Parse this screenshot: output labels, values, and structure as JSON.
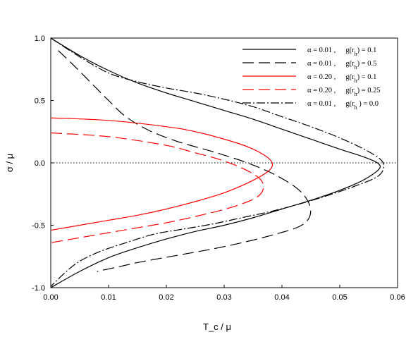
{
  "chart_data": {
    "type": "line",
    "xlabel": "T_c / μ",
    "ylabel": "σ / μ",
    "xlim": [
      0.0,
      0.06
    ],
    "ylim": [
      -1.0,
      1.0
    ],
    "x_ticks": [
      "0.00",
      "0.01",
      "0.02",
      "0.03",
      "0.04",
      "0.05",
      "0.06"
    ],
    "y_ticks": [
      "1.0",
      "0.5",
      "0.0",
      "-0.5",
      "-1.0"
    ],
    "grid": false,
    "legend_position": "top-right",
    "reference_line": {
      "y": 0.0,
      "style": "dotted"
    },
    "series": [
      {
        "name": "α = 0.01 ,   g(r_h) = 0.1",
        "legend": {
          "alpha": "α = 0.01 ,",
          "g": "g(r",
          "sub": "h",
          "eq": ") = 0.1"
        },
        "color": "#000000",
        "dash": "solid",
        "points": [
          [
            0.0,
            1.0
          ],
          [
            0.005,
            0.86
          ],
          [
            0.01,
            0.74
          ],
          [
            0.015,
            0.64
          ],
          [
            0.02,
            0.56
          ],
          [
            0.025,
            0.49
          ],
          [
            0.03,
            0.42
          ],
          [
            0.035,
            0.35
          ],
          [
            0.04,
            0.27
          ],
          [
            0.045,
            0.19
          ],
          [
            0.05,
            0.11
          ],
          [
            0.054,
            0.05
          ],
          [
            0.0565,
            0.0
          ],
          [
            0.0568,
            -0.05
          ],
          [
            0.054,
            -0.14
          ],
          [
            0.05,
            -0.22
          ],
          [
            0.045,
            -0.3
          ],
          [
            0.04,
            -0.37
          ],
          [
            0.035,
            -0.44
          ],
          [
            0.03,
            -0.5
          ],
          [
            0.025,
            -0.55
          ],
          [
            0.02,
            -0.61
          ],
          [
            0.015,
            -0.68
          ],
          [
            0.01,
            -0.76
          ],
          [
            0.005,
            -0.87
          ],
          [
            0.0,
            -1.0
          ]
        ]
      },
      {
        "name": "α = 0.01 ,   g(r_h) = 0.5",
        "legend": {
          "alpha": "α = 0.01 ,",
          "g": "g(r",
          "sub": "h",
          "eq": ") = 0.5"
        },
        "color": "#000000",
        "dash": "longdash",
        "points": [
          [
            0.0013,
            0.9
          ],
          [
            0.004,
            0.78
          ],
          [
            0.007,
            0.64
          ],
          [
            0.01,
            0.5
          ],
          [
            0.013,
            0.37
          ],
          [
            0.017,
            0.26
          ],
          [
            0.022,
            0.17
          ],
          [
            0.028,
            0.09
          ],
          [
            0.034,
            0.0
          ],
          [
            0.039,
            -0.1
          ],
          [
            0.043,
            -0.22
          ],
          [
            0.0448,
            -0.34
          ],
          [
            0.0447,
            -0.44
          ],
          [
            0.043,
            -0.51
          ],
          [
            0.039,
            -0.57
          ],
          [
            0.034,
            -0.63
          ],
          [
            0.028,
            -0.69
          ],
          [
            0.022,
            -0.74
          ],
          [
            0.016,
            -0.79
          ],
          [
            0.012,
            -0.83
          ],
          [
            0.008,
            -0.87
          ]
        ]
      },
      {
        "name": "α = 0.20 ,   g(r_h) = 0.1",
        "legend": {
          "alpha": "α = 0.20 ,",
          "g": "g(r",
          "sub": "h",
          "eq": ") = 0.1"
        },
        "color": "#ff0000",
        "dash": "solid",
        "points": [
          [
            0.0,
            0.36
          ],
          [
            0.01,
            0.34
          ],
          [
            0.02,
            0.29
          ],
          [
            0.025,
            0.25
          ],
          [
            0.03,
            0.19
          ],
          [
            0.034,
            0.13
          ],
          [
            0.037,
            0.06
          ],
          [
            0.0383,
            0.0
          ],
          [
            0.0378,
            -0.06
          ],
          [
            0.035,
            -0.14
          ],
          [
            0.03,
            -0.24
          ],
          [
            0.025,
            -0.31
          ],
          [
            0.02,
            -0.37
          ],
          [
            0.015,
            -0.42
          ],
          [
            0.01,
            -0.46
          ],
          [
            0.005,
            -0.5
          ],
          [
            0.0,
            -0.54
          ]
        ]
      },
      {
        "name": "α = 0.20 ,   g(r_h) = 0.25",
        "legend": {
          "alpha": "α = 0.20 ,",
          "g": "g(r",
          "sub": "h",
          "eq": ") = 0.25"
        },
        "color": "#ff0000",
        "dash": "longdash",
        "points": [
          [
            0.0,
            0.24
          ],
          [
            0.01,
            0.21
          ],
          [
            0.02,
            0.14
          ],
          [
            0.025,
            0.08
          ],
          [
            0.029,
            0.03
          ],
          [
            0.033,
            -0.04
          ],
          [
            0.036,
            -0.12
          ],
          [
            0.0368,
            -0.2
          ],
          [
            0.0355,
            -0.28
          ],
          [
            0.031,
            -0.36
          ],
          [
            0.025,
            -0.43
          ],
          [
            0.02,
            -0.48
          ],
          [
            0.015,
            -0.52
          ],
          [
            0.01,
            -0.56
          ],
          [
            0.005,
            -0.6
          ],
          [
            0.0,
            -0.64
          ]
        ]
      },
      {
        "name": "α = 0.01 ,   g(r_h ) = 0.0",
        "legend": {
          "alpha": "α = 0.01 ,",
          "g": "g(r",
          "sub": "h",
          "eq": " ) = 0.0"
        },
        "color": "#000000",
        "dash": "dashdot",
        "points": [
          [
            0.0,
            1.0
          ],
          [
            0.005,
            0.85
          ],
          [
            0.01,
            0.72
          ],
          [
            0.015,
            0.65
          ],
          [
            0.02,
            0.6
          ],
          [
            0.025,
            0.56
          ],
          [
            0.03,
            0.51
          ],
          [
            0.035,
            0.45
          ],
          [
            0.04,
            0.37
          ],
          [
            0.045,
            0.29
          ],
          [
            0.05,
            0.2
          ],
          [
            0.055,
            0.09
          ],
          [
            0.0575,
            0.0
          ],
          [
            0.0568,
            -0.1
          ],
          [
            0.053,
            -0.18
          ],
          [
            0.048,
            -0.26
          ],
          [
            0.043,
            -0.33
          ],
          [
            0.038,
            -0.39
          ],
          [
            0.033,
            -0.44
          ],
          [
            0.028,
            -0.49
          ],
          [
            0.023,
            -0.53
          ],
          [
            0.018,
            -0.57
          ],
          [
            0.013,
            -0.64
          ],
          [
            0.008,
            -0.72
          ],
          [
            0.004,
            -0.82
          ],
          [
            0.0,
            -0.99
          ]
        ]
      }
    ]
  }
}
